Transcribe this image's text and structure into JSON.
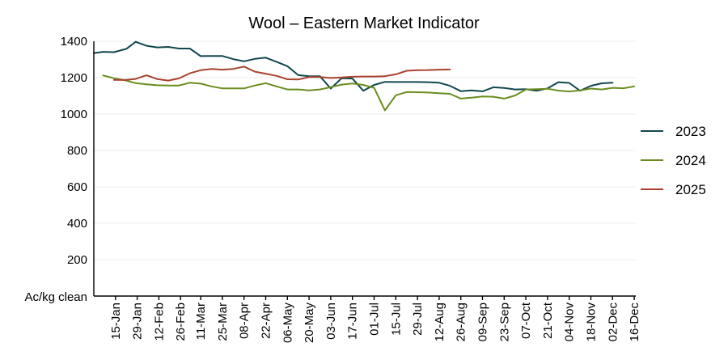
{
  "chart_data": {
    "type": "line",
    "title": "Wool – Eastern Market Indicator",
    "ylabel": "Ac/kg clean",
    "xlabel": "",
    "ylim": [
      0,
      1400
    ],
    "yticks": [
      200,
      400,
      600,
      800,
      1000,
      1200,
      1400
    ],
    "xlim": [
      0,
      350
    ],
    "xticks": [
      {
        "label": "15-Jan",
        "day": 14
      },
      {
        "label": "29-Jan",
        "day": 28
      },
      {
        "label": "12-Feb",
        "day": 42
      },
      {
        "label": "26-Feb",
        "day": 56
      },
      {
        "label": "11-Mar",
        "day": 69
      },
      {
        "label": "25-Mar",
        "day": 83
      },
      {
        "label": "08-Apr",
        "day": 97
      },
      {
        "label": "22-Apr",
        "day": 111
      },
      {
        "label": "06-May",
        "day": 125
      },
      {
        "label": "20-May",
        "day": 139
      },
      {
        "label": "03-Jun",
        "day": 153
      },
      {
        "label": "17-Jun",
        "day": 167
      },
      {
        "label": "01-Jul",
        "day": 181
      },
      {
        "label": "15-Jul",
        "day": 195
      },
      {
        "label": "29-Jul",
        "day": 209
      },
      {
        "label": "12-Aug",
        "day": 223
      },
      {
        "label": "26-Aug",
        "day": 237
      },
      {
        "label": "09-Sep",
        "day": 251
      },
      {
        "label": "23-Sep",
        "day": 265
      },
      {
        "label": "07-Oct",
        "day": 279
      },
      {
        "label": "21-Oct",
        "day": 293
      },
      {
        "label": "04-Nov",
        "day": 307
      },
      {
        "label": "18-Nov",
        "day": 321
      },
      {
        "label": "02-Dec",
        "day": 335
      },
      {
        "label": "16-Dec",
        "day": 349
      }
    ],
    "grid": "horizontal",
    "legend_position": "right",
    "series": [
      {
        "name": "2023",
        "color": "#12474f",
        "x": [
          0,
          6,
          13,
          21,
          27,
          34,
          41,
          48,
          55,
          62,
          69,
          76,
          83,
          90,
          97,
          104,
          111,
          118,
          125,
          132,
          139,
          146,
          153,
          160,
          167,
          174,
          181,
          188,
          195,
          202,
          209,
          216,
          223,
          230,
          237,
          244,
          251,
          258,
          265,
          272,
          279,
          286,
          293,
          300,
          307,
          314,
          321,
          328,
          335
        ],
        "y": [
          1335,
          1342,
          1340,
          1358,
          1397,
          1375,
          1366,
          1369,
          1360,
          1360,
          1318,
          1319,
          1319,
          1302,
          1290,
          1303,
          1310,
          1287,
          1263,
          1214,
          1208,
          1208,
          1140,
          1197,
          1195,
          1128,
          1160,
          1177,
          1176,
          1176,
          1176,
          1175,
          1172,
          1155,
          1126,
          1130,
          1125,
          1147,
          1143,
          1135,
          1137,
          1128,
          1141,
          1175,
          1171,
          1128,
          1155,
          1169,
          1172
        ]
      },
      {
        "name": "2024",
        "color": "#6a8c1f",
        "x": [
          6,
          13,
          20,
          27,
          34,
          41,
          48,
          55,
          62,
          69,
          76,
          83,
          90,
          97,
          104,
          111,
          118,
          125,
          132,
          139,
          146,
          153,
          160,
          167,
          174,
          181,
          188,
          195,
          202,
          209,
          216,
          223,
          230,
          237,
          244,
          251,
          258,
          265,
          272,
          279,
          286,
          293,
          300,
          307,
          314,
          321,
          328,
          335,
          342,
          349
        ],
        "y": [
          1212,
          1197,
          1186,
          1170,
          1163,
          1158,
          1157,
          1157,
          1172,
          1167,
          1152,
          1141,
          1141,
          1141,
          1157,
          1170,
          1152,
          1135,
          1135,
          1130,
          1135,
          1148,
          1162,
          1168,
          1160,
          1144,
          1020,
          1103,
          1121,
          1120,
          1118,
          1114,
          1111,
          1085,
          1090,
          1097,
          1095,
          1085,
          1102,
          1135,
          1137,
          1139,
          1129,
          1124,
          1130,
          1140,
          1135,
          1144,
          1142,
          1152
        ]
      },
      {
        "name": "2025",
        "color": "#a8422d",
        "x": [
          13,
          20,
          27,
          34,
          41,
          48,
          55,
          62,
          69,
          76,
          83,
          90,
          97,
          104,
          111,
          118,
          125,
          132,
          139,
          146,
          153,
          160,
          167,
          174,
          181,
          188,
          195,
          202,
          209,
          216,
          223,
          230
        ],
        "y": [
          1188,
          1187,
          1193,
          1213,
          1192,
          1184,
          1196,
          1224,
          1241,
          1248,
          1244,
          1248,
          1261,
          1233,
          1222,
          1210,
          1191,
          1190,
          1203,
          1203,
          1198,
          1201,
          1205,
          1206,
          1206,
          1208,
          1218,
          1238,
          1241,
          1242,
          1244,
          1245
        ]
      }
    ]
  }
}
